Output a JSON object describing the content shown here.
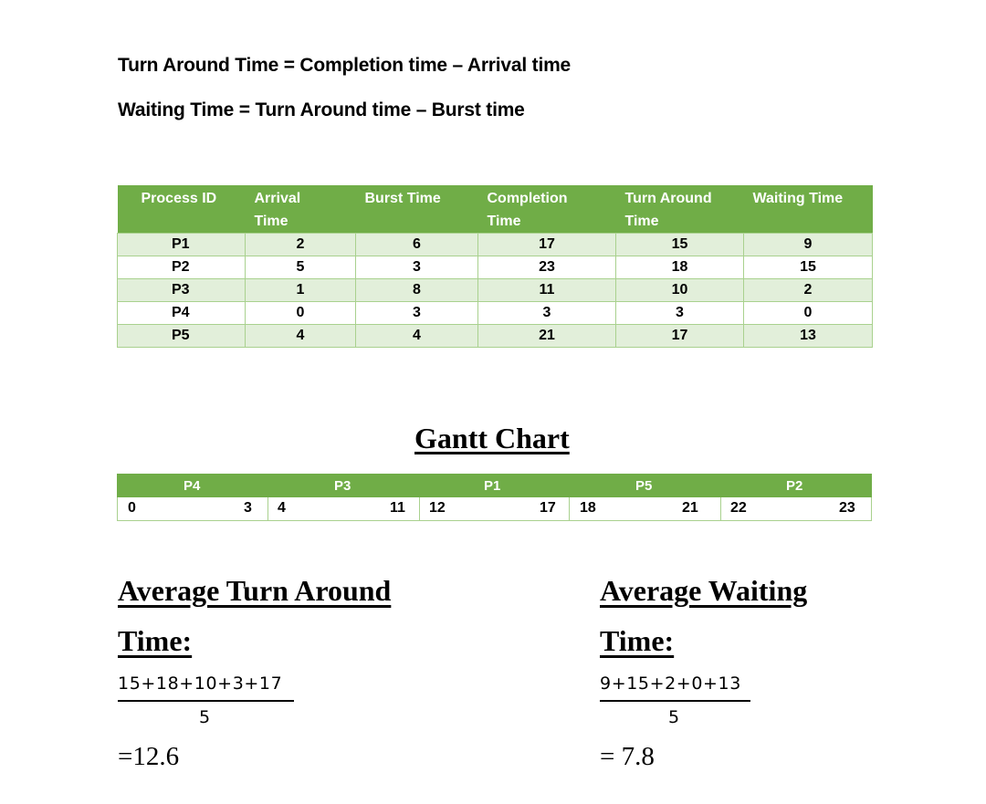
{
  "formulas": {
    "turnaround": "Turn Around Time = Completion time – Arrival time",
    "waiting": "Waiting Time = Turn Around time – Burst time"
  },
  "process_table": {
    "headers": [
      {
        "line1": "Process ID",
        "line2": ""
      },
      {
        "line1": "Arrival",
        "line2": "Time"
      },
      {
        "line1": "Burst Time",
        "line2": ""
      },
      {
        "line1": "Completion",
        "line2": "Time"
      },
      {
        "line1": "Turn Around",
        "line2": "Time"
      },
      {
        "line1": "Waiting Time",
        "line2": ""
      }
    ],
    "rows": [
      [
        "P1",
        "2",
        "6",
        "17",
        "15",
        "9"
      ],
      [
        "P2",
        "5",
        "3",
        "23",
        "18",
        "15"
      ],
      [
        "P3",
        "1",
        "8",
        "11",
        "10",
        "2"
      ],
      [
        "P4",
        "0",
        "3",
        "3",
        "3",
        "0"
      ],
      [
        "P5",
        "4",
        "4",
        "21",
        "17",
        "13"
      ]
    ]
  },
  "gantt": {
    "title": "Gantt Chart",
    "processes": [
      "P4",
      "P3",
      "P1",
      "P5",
      "P2"
    ],
    "times": [
      "0",
      "3",
      "4",
      "11",
      "12",
      "17",
      "18",
      "21",
      "22",
      "23"
    ]
  },
  "avg_turnaround": {
    "title_line1": "Average Turn Around",
    "title_line2": "Time:",
    "numerator": "15+18+10+3+17",
    "denominator": "5",
    "result": "=12.6"
  },
  "avg_waiting": {
    "title_line1": "Average Waiting",
    "title_line2": "Time:",
    "numerator": "9+15+2+0+13",
    "denominator": "5",
    "result": "= 7.8"
  },
  "colors": {
    "header_green": "#70ad47",
    "row_light_green": "#e2efda",
    "border_green": "#a9d18e"
  }
}
